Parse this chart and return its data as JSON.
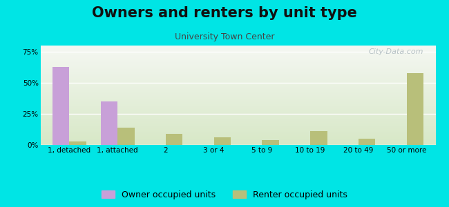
{
  "title": "Owners and renters by unit type",
  "subtitle": "University Town Center",
  "categories": [
    "1, detached",
    "1, attached",
    "2",
    "3 or 4",
    "5 to 9",
    "10 to 19",
    "20 to 49",
    "50 or more"
  ],
  "owner_values": [
    63,
    35,
    0,
    0,
    0,
    0,
    0,
    0
  ],
  "renter_values": [
    3,
    14,
    9,
    6,
    4,
    11,
    5,
    58
  ],
  "owner_color": "#c8a0d8",
  "renter_color": "#b8bf7a",
  "background_color": "#00e5e5",
  "plot_bg_top": "#f5f5f0",
  "plot_bg_bottom": "#d8e8c8",
  "yticks": [
    0,
    25,
    50,
    75
  ],
  "ylim": [
    0,
    80
  ],
  "bar_width": 0.35,
  "legend_owner": "Owner occupied units",
  "legend_renter": "Renter occupied units",
  "title_fontsize": 15,
  "subtitle_fontsize": 9,
  "tick_fontsize": 7.5,
  "legend_fontsize": 9,
  "watermark_text": "City-Data.com",
  "watermark_color": "#b0bcc0"
}
